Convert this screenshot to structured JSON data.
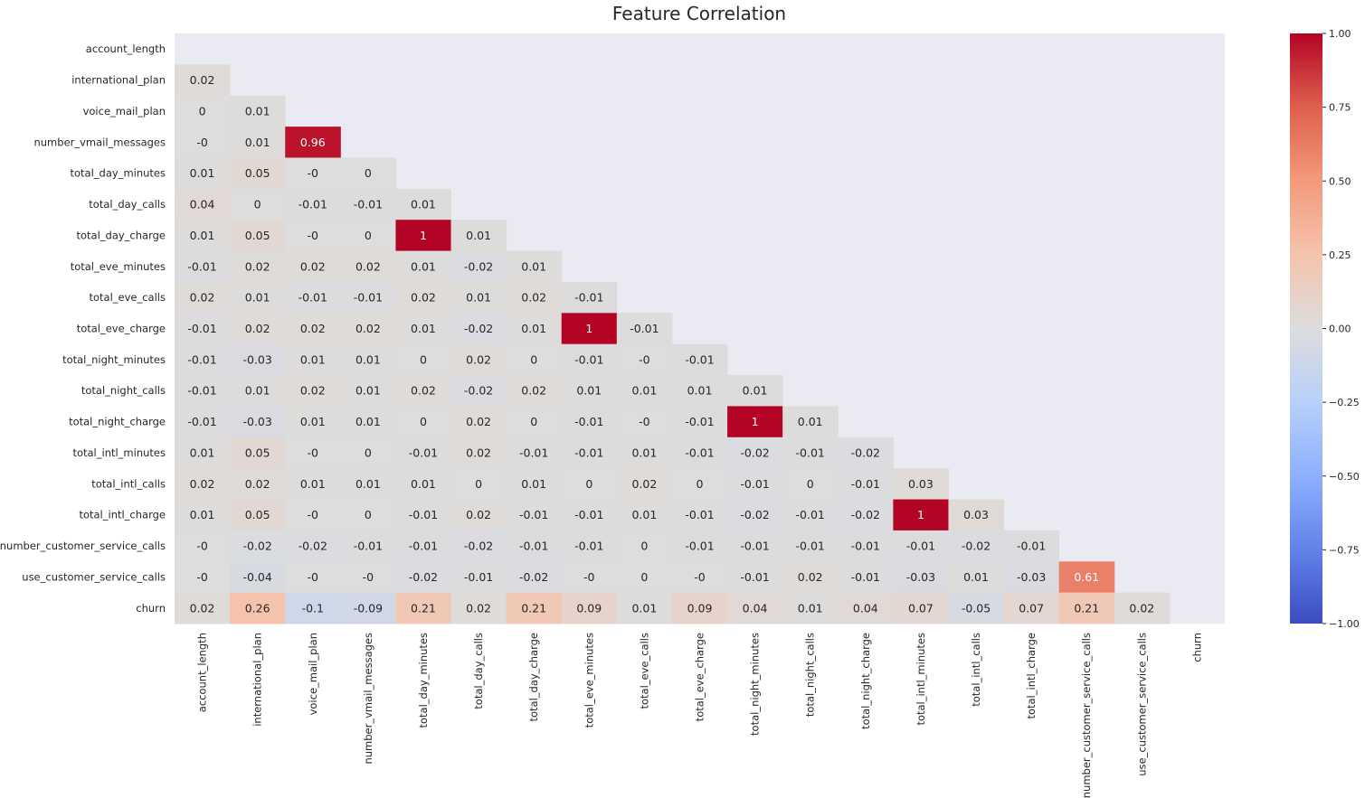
{
  "chart_data": {
    "type": "heatmap",
    "title": "Feature Correlation",
    "mask": "upper-triangle-including-diagonal",
    "colormap": "coolwarm",
    "background_color": "#eaeaf2",
    "vmin": -1,
    "vmax": 1,
    "colorbar_ticks": [
      {
        "value": 1,
        "label": "1.00"
      },
      {
        "value": 0.75,
        "label": "0.75"
      },
      {
        "value": 0.5,
        "label": "0.50"
      },
      {
        "value": 0.25,
        "label": "0.25"
      },
      {
        "value": 0,
        "label": "0.00"
      },
      {
        "value": -0.25,
        "label": "−0.25"
      },
      {
        "value": -0.5,
        "label": "−0.50"
      },
      {
        "value": -0.75,
        "label": "−0.75"
      },
      {
        "value": -1,
        "label": "−1.00"
      }
    ],
    "labels": [
      "account_length",
      "international_plan",
      "voice_mail_plan",
      "number_vmail_messages",
      "total_day_minutes",
      "total_day_calls",
      "total_day_charge",
      "total_eve_minutes",
      "total_eve_calls",
      "total_eve_charge",
      "total_night_minutes",
      "total_night_calls",
      "total_night_charge",
      "total_intl_minutes",
      "total_intl_calls",
      "total_intl_charge",
      "number_customer_service_calls",
      "use_customer_service_calls",
      "churn"
    ],
    "rows": [
      [],
      [
        "0.02"
      ],
      [
        "0",
        "0.01"
      ],
      [
        "-0",
        "0.01",
        "0.96"
      ],
      [
        "0.01",
        "0.05",
        "-0",
        "0"
      ],
      [
        "0.04",
        "0",
        "-0.01",
        "-0.01",
        "0.01"
      ],
      [
        "0.01",
        "0.05",
        "-0",
        "0",
        "1",
        "0.01"
      ],
      [
        "-0.01",
        "0.02",
        "0.02",
        "0.02",
        "0.01",
        "-0.02",
        "0.01"
      ],
      [
        "0.02",
        "0.01",
        "-0.01",
        "-0.01",
        "0.02",
        "0.01",
        "0.02",
        "-0.01"
      ],
      [
        "-0.01",
        "0.02",
        "0.02",
        "0.02",
        "0.01",
        "-0.02",
        "0.01",
        "1",
        "-0.01"
      ],
      [
        "-0.01",
        "-0.03",
        "0.01",
        "0.01",
        "0",
        "0.02",
        "0",
        "-0.01",
        "-0",
        "-0.01"
      ],
      [
        "-0.01",
        "0.01",
        "0.02",
        "0.01",
        "0.02",
        "-0.02",
        "0.02",
        "0.01",
        "0.01",
        "0.01",
        "0.01"
      ],
      [
        "-0.01",
        "-0.03",
        "0.01",
        "0.01",
        "0",
        "0.02",
        "0",
        "-0.01",
        "-0",
        "-0.01",
        "1",
        "0.01"
      ],
      [
        "0.01",
        "0.05",
        "-0",
        "0",
        "-0.01",
        "0.02",
        "-0.01",
        "-0.01",
        "0.01",
        "-0.01",
        "-0.02",
        "-0.01",
        "-0.02"
      ],
      [
        "0.02",
        "0.02",
        "0.01",
        "0.01",
        "0.01",
        "0",
        "0.01",
        "0",
        "0.02",
        "0",
        "-0.01",
        "0",
        "-0.01",
        "0.03"
      ],
      [
        "0.01",
        "0.05",
        "-0",
        "0",
        "-0.01",
        "0.02",
        "-0.01",
        "-0.01",
        "0.01",
        "-0.01",
        "-0.02",
        "-0.01",
        "-0.02",
        "1",
        "0.03"
      ],
      [
        "-0",
        "-0.02",
        "-0.02",
        "-0.01",
        "-0.01",
        "-0.02",
        "-0.01",
        "-0.01",
        "0",
        "-0.01",
        "-0.01",
        "-0.01",
        "-0.01",
        "-0.01",
        "-0.02",
        "-0.01"
      ],
      [
        "-0",
        "-0.04",
        "-0",
        "-0",
        "-0.02",
        "-0.01",
        "-0.02",
        "-0",
        "0",
        "-0",
        "-0.01",
        "0.02",
        "-0.01",
        "-0.03",
        "0.01",
        "-0.03",
        "0.61"
      ],
      [
        "0.02",
        "0.26",
        "-0.1",
        "-0.09",
        "0.21",
        "0.02",
        "0.21",
        "0.09",
        "0.01",
        "0.09",
        "0.04",
        "0.01",
        "0.04",
        "0.07",
        "-0.05",
        "0.07",
        "0.21",
        "0.02"
      ]
    ]
  }
}
